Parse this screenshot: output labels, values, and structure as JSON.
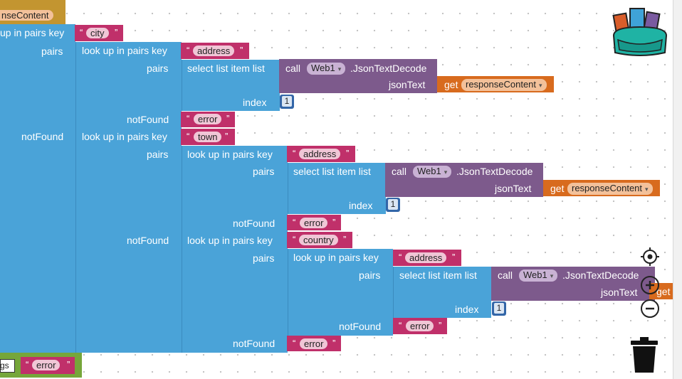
{
  "colors": {
    "lookup": "#4aa3d8",
    "text": "#c0306a",
    "call": "#7d5a8c",
    "get": "#d86b1e",
    "number": "#3366a8",
    "outer": "#76a63a"
  },
  "blocks": {
    "top_var": "nseContent",
    "lookup_label": "up in pairs  key",
    "lookup_full": "look up in pairs  key",
    "pairs": "pairs",
    "not_found": "notFound",
    "select_label": "select list item  list",
    "index": "index",
    "call": "call",
    "component": "Web1",
    "method": ".JsonTextDecode",
    "json_text": "jsonText",
    "get": "get",
    "var": "responseContent",
    "get_partial": "get",
    "num": "1",
    "keys": {
      "city": "city",
      "address": "address",
      "town": "town",
      "country": "country",
      "error": "error"
    },
    "bottom_partial": "gs",
    "side_zero": "0"
  },
  "icons": [
    "backpack-icon",
    "recenter-icon",
    "zoom-in-icon",
    "zoom-out-icon",
    "trash-icon"
  ]
}
